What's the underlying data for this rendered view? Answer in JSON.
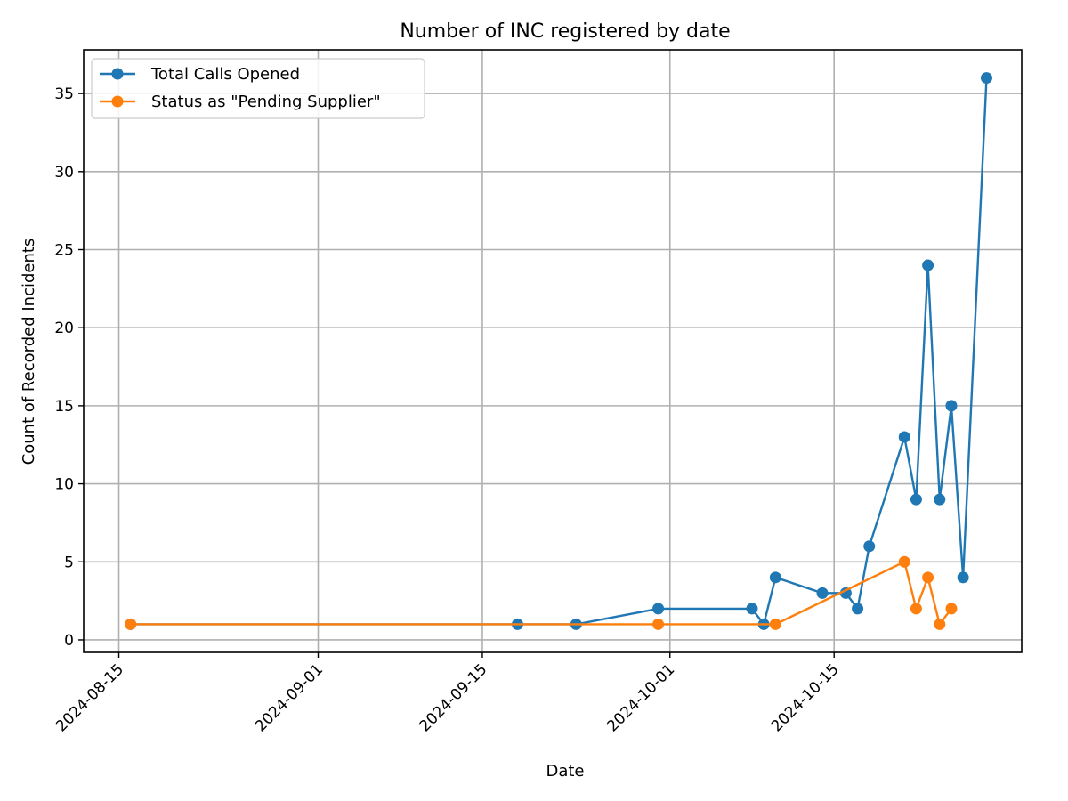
{
  "chart_data": {
    "type": "line",
    "title": "Number of INC registered by date",
    "xlabel": "Date",
    "ylabel": "Count of Recorded Incidents",
    "x_type": "date",
    "xlim": [
      "2024-08-12",
      "2024-10-31"
    ],
    "ylim": [
      -0.8,
      37.8
    ],
    "x_ticks": [
      "2024-08-15",
      "2024-09-01",
      "2024-09-15",
      "2024-10-01",
      "2024-10-15"
    ],
    "y_ticks": [
      0,
      5,
      10,
      15,
      20,
      25,
      30,
      35
    ],
    "grid": true,
    "legend_position": "top-left",
    "series": [
      {
        "name": "Total Calls Opened",
        "color": "#1f77b4",
        "marker": "circle",
        "points": [
          {
            "x": "2024-08-16",
            "y": 1
          },
          {
            "x": "2024-09-18",
            "y": 1
          },
          {
            "x": "2024-09-23",
            "y": 1
          },
          {
            "x": "2024-09-30",
            "y": 2
          },
          {
            "x": "2024-10-08",
            "y": 2
          },
          {
            "x": "2024-10-09",
            "y": 1
          },
          {
            "x": "2024-10-10",
            "y": 4
          },
          {
            "x": "2024-10-14",
            "y": 3
          },
          {
            "x": "2024-10-16",
            "y": 3
          },
          {
            "x": "2024-10-17",
            "y": 2
          },
          {
            "x": "2024-10-18",
            "y": 6
          },
          {
            "x": "2024-10-21",
            "y": 13
          },
          {
            "x": "2024-10-22",
            "y": 9
          },
          {
            "x": "2024-10-23",
            "y": 24
          },
          {
            "x": "2024-10-24",
            "y": 9
          },
          {
            "x": "2024-10-25",
            "y": 15
          },
          {
            "x": "2024-10-26",
            "y": 4
          },
          {
            "x": "2024-10-28",
            "y": 36
          }
        ]
      },
      {
        "name": "Status as \"Pending Supplier\"",
        "color": "#ff7f0e",
        "marker": "circle",
        "points": [
          {
            "x": "2024-08-16",
            "y": 1
          },
          {
            "x": "2024-09-30",
            "y": 1
          },
          {
            "x": "2024-10-10",
            "y": 1
          },
          {
            "x": "2024-10-21",
            "y": 5
          },
          {
            "x": "2024-10-22",
            "y": 2
          },
          {
            "x": "2024-10-23",
            "y": 4
          },
          {
            "x": "2024-10-24",
            "y": 1
          },
          {
            "x": "2024-10-25",
            "y": 2
          }
        ]
      }
    ]
  }
}
